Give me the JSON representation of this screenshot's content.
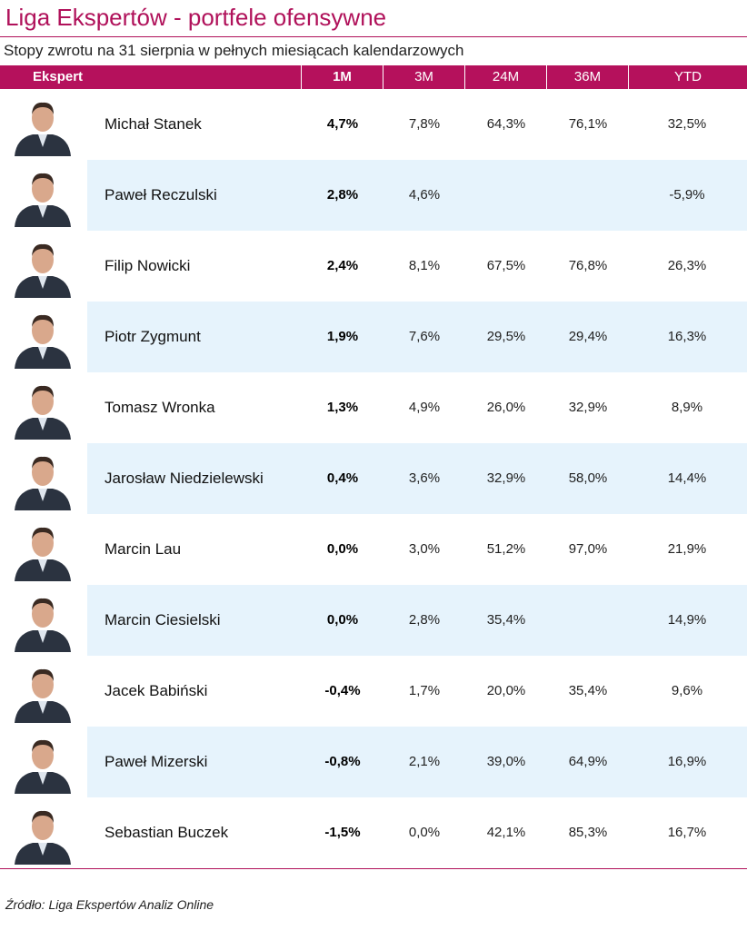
{
  "title": "Liga Ekspertów - portfele ofensywne",
  "subtitle": "Stopy zwrotu na 31 sierpnia w pełnych miesiącach kalendarzowych",
  "source": "Źródło: Liga Ekspertów Analiz Online",
  "colors": {
    "accent": "#b5115c",
    "alt_row": "#e6f3fc"
  },
  "chart_data": {
    "type": "table",
    "columns": [
      "Ekspert",
      "1M",
      "3M",
      "24M",
      "36M",
      "YTD"
    ],
    "rows": [
      [
        "Michał Stanek",
        "4,7%",
        "7,8%",
        "64,3%",
        "76,1%",
        "32,5%"
      ],
      [
        "Paweł Reczulski",
        "2,8%",
        "4,6%",
        "",
        "",
        "-5,9%"
      ],
      [
        "Filip Nowicki",
        "2,4%",
        "8,1%",
        "67,5%",
        "76,8%",
        "26,3%"
      ],
      [
        "Piotr Zygmunt",
        "1,9%",
        "7,6%",
        "29,5%",
        "29,4%",
        "16,3%"
      ],
      [
        "Tomasz Wronka",
        "1,3%",
        "4,9%",
        "26,0%",
        "32,9%",
        "8,9%"
      ],
      [
        "Jarosław Niedzielewski",
        "0,4%",
        "3,6%",
        "32,9%",
        "58,0%",
        "14,4%"
      ],
      [
        "Marcin Lau",
        "0,0%",
        "3,0%",
        "51,2%",
        "97,0%",
        "21,9%"
      ],
      [
        "Marcin Ciesielski",
        "0,0%",
        "2,8%",
        "35,4%",
        "",
        "14,9%"
      ],
      [
        "Jacek Babiński",
        "-0,4%",
        "1,7%",
        "20,0%",
        "35,4%",
        "9,6%"
      ],
      [
        "Paweł Mizerski",
        "-0,8%",
        "2,1%",
        "39,0%",
        "64,9%",
        "16,9%"
      ],
      [
        "Sebastian Buczek",
        "-1,5%",
        "0,0%",
        "42,1%",
        "85,3%",
        "16,7%"
      ]
    ]
  }
}
